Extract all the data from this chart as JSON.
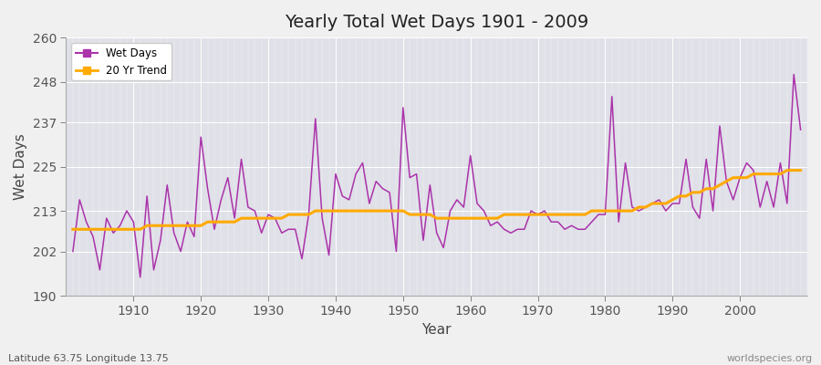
{
  "title": "Yearly Total Wet Days 1901 - 2009",
  "xlabel": "Year",
  "ylabel": "Wet Days",
  "subtitle": "Latitude 63.75 Longitude 13.75",
  "watermark": "worldspecies.org",
  "ylim": [
    190,
    260
  ],
  "yticks": [
    190,
    202,
    213,
    225,
    237,
    248,
    260
  ],
  "xlim": [
    1901,
    2009
  ],
  "xticks": [
    1910,
    1920,
    1930,
    1940,
    1950,
    1960,
    1970,
    1980,
    1990,
    2000
  ],
  "line_color": "#aa33aa",
  "trend_color": "#ffaa00",
  "bg_color": "#e0e0e8",
  "fig_color": "#f0f0f0",
  "legend_labels": [
    "Wet Days",
    "20 Yr Trend"
  ],
  "years": [
    1901,
    1902,
    1903,
    1904,
    1905,
    1906,
    1907,
    1908,
    1909,
    1910,
    1911,
    1912,
    1913,
    1914,
    1915,
    1916,
    1917,
    1918,
    1919,
    1920,
    1921,
    1922,
    1923,
    1924,
    1925,
    1926,
    1927,
    1928,
    1929,
    1930,
    1931,
    1932,
    1933,
    1934,
    1935,
    1936,
    1937,
    1938,
    1939,
    1940,
    1941,
    1942,
    1943,
    1944,
    1945,
    1946,
    1947,
    1948,
    1949,
    1950,
    1951,
    1952,
    1953,
    1954,
    1955,
    1956,
    1957,
    1958,
    1959,
    1960,
    1961,
    1962,
    1963,
    1964,
    1965,
    1966,
    1967,
    1968,
    1969,
    1970,
    1971,
    1972,
    1973,
    1974,
    1975,
    1976,
    1977,
    1978,
    1979,
    1980,
    1981,
    1982,
    1983,
    1984,
    1985,
    1986,
    1987,
    1988,
    1989,
    1990,
    1991,
    1992,
    1993,
    1994,
    1995,
    1996,
    1997,
    1998,
    1999,
    2000,
    2001,
    2002,
    2003,
    2004,
    2005,
    2006,
    2007,
    2008,
    2009
  ],
  "wet_days": [
    202,
    216,
    210,
    206,
    197,
    211,
    207,
    209,
    213,
    210,
    195,
    217,
    197,
    205,
    220,
    207,
    202,
    210,
    206,
    233,
    219,
    208,
    216,
    222,
    211,
    227,
    214,
    213,
    207,
    212,
    211,
    207,
    208,
    208,
    200,
    212,
    238,
    211,
    201,
    223,
    217,
    216,
    223,
    226,
    215,
    221,
    219,
    218,
    202,
    241,
    222,
    223,
    205,
    220,
    207,
    203,
    213,
    216,
    214,
    228,
    215,
    213,
    209,
    210,
    208,
    207,
    208,
    208,
    213,
    212,
    213,
    210,
    210,
    208,
    209,
    208,
    208,
    210,
    212,
    212,
    244,
    210,
    226,
    214,
    213,
    214,
    215,
    216,
    213,
    215,
    215,
    227,
    214,
    211,
    227,
    213,
    236,
    221,
    216,
    222,
    226,
    224,
    214,
    221,
    214,
    226,
    215,
    250,
    235
  ],
  "trend": [
    208,
    208,
    208,
    208,
    208,
    208,
    208,
    208,
    208,
    208,
    208,
    209,
    209,
    209,
    209,
    209,
    209,
    209,
    209,
    209,
    210,
    210,
    210,
    210,
    210,
    211,
    211,
    211,
    211,
    211,
    211,
    211,
    212,
    212,
    212,
    212,
    213,
    213,
    213,
    213,
    213,
    213,
    213,
    213,
    213,
    213,
    213,
    213,
    213,
    213,
    212,
    212,
    212,
    212,
    211,
    211,
    211,
    211,
    211,
    211,
    211,
    211,
    211,
    211,
    212,
    212,
    212,
    212,
    212,
    212,
    212,
    212,
    212,
    212,
    212,
    212,
    212,
    213,
    213,
    213,
    213,
    213,
    213,
    213,
    214,
    214,
    215,
    215,
    215,
    216,
    217,
    217,
    218,
    218,
    219,
    219,
    220,
    221,
    222,
    222,
    222,
    223,
    223,
    223,
    223,
    223,
    224,
    224,
    224
  ]
}
